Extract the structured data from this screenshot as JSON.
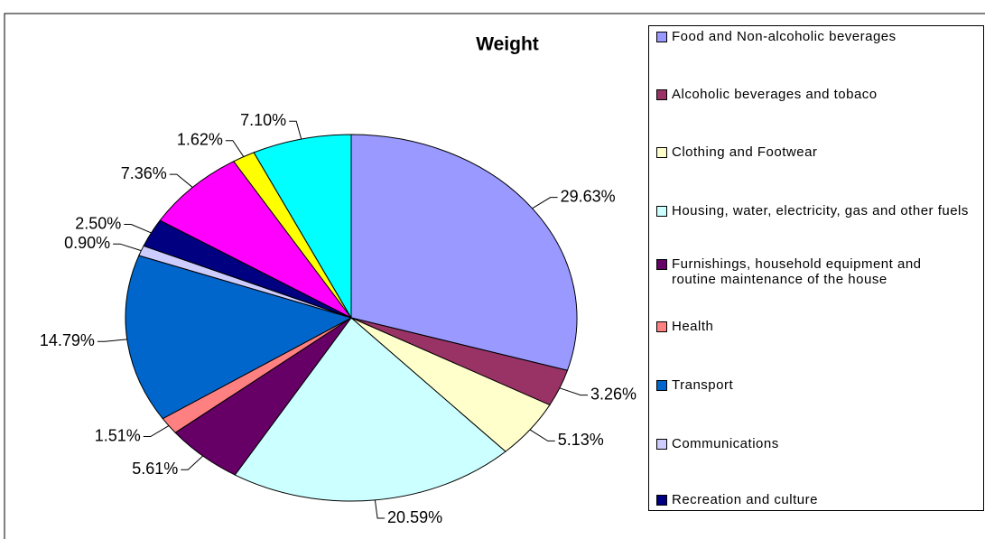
{
  "chart_data": {
    "type": "pie",
    "title": "Weight",
    "categories": [
      "Food and Non-alcoholic beverages",
      "Alcoholic beverages and tobaco",
      "Clothing and Footwear",
      "Housing, water, electricity, gas and other fuels",
      "Furnishings, household equipment and routine maintenance of the house",
      "Health",
      "Transport",
      "Communications",
      "Recreation and culture",
      null,
      null,
      null
    ],
    "values": [
      29.63,
      3.26,
      5.13,
      20.59,
      5.61,
      1.51,
      14.79,
      0.9,
      2.5,
      7.36,
      1.62,
      7.1
    ],
    "value_labels": [
      "29.63%",
      "3.26%",
      "5.13%",
      "20.59%",
      "5.61%",
      "1.51%",
      "14.79%",
      "0.90%",
      "2.50%",
      "7.36%",
      "1.62%",
      "7.10%"
    ],
    "colors": [
      "#9999ff",
      "#993366",
      "#ffffcc",
      "#ccffff",
      "#660066",
      "#ff8080",
      "#0066cc",
      "#ccccff",
      "#000080",
      "#ff00ff",
      "#ffff00",
      "#00ffff"
    ]
  }
}
